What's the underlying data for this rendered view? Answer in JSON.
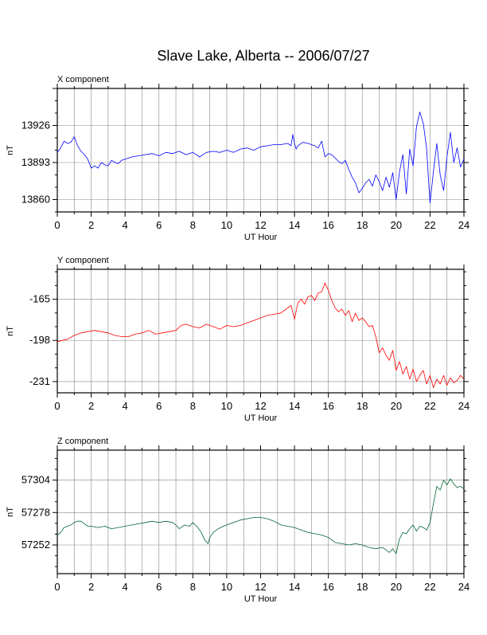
{
  "title": "Slave Lake, Alberta -- 2006/07/27",
  "colors": {
    "x": "#0000ff",
    "y": "#ff0000",
    "z": "#006633",
    "grid": "#888888"
  },
  "chart_data": [
    {
      "type": "line",
      "panel_label": "X component",
      "xlabel": "UT Hour",
      "ylabel": "nT",
      "xlim": [
        0,
        24
      ],
      "ylim": [
        13849,
        13959
      ],
      "x_ticks": [
        0,
        2,
        4,
        6,
        8,
        10,
        12,
        14,
        16,
        18,
        20,
        22,
        24
      ],
      "y_ticks": [
        13926,
        13893,
        13860
      ],
      "grid": true,
      "color_key": "x",
      "series": [
        {
          "x": [
            0,
            0.2,
            0.4,
            0.6,
            0.8,
            1.0,
            1.2,
            1.4,
            1.6,
            1.8,
            2.0,
            2.2,
            2.4,
            2.6,
            2.8,
            3.0,
            3.2,
            3.4,
            3.6,
            3.8,
            4.0,
            4.4,
            4.8,
            5.2,
            5.6,
            6.0,
            6.4,
            6.8,
            7.2,
            7.6,
            8.0,
            8.4,
            8.8,
            9.2,
            9.6,
            10.0,
            10.4,
            10.8,
            11.2,
            11.6,
            12.0,
            12.4,
            12.8,
            13.2,
            13.6,
            13.8,
            13.9,
            14.0,
            14.1,
            14.2,
            14.5,
            14.8,
            15.0,
            15.2,
            15.4,
            15.6,
            15.8,
            16.0,
            16.2,
            16.4,
            16.6,
            16.8,
            17.0,
            17.2,
            17.4,
            17.6,
            17.8,
            18.0,
            18.2,
            18.4,
            18.6,
            18.8,
            19.0,
            19.2,
            19.4,
            19.6,
            19.8,
            20.0,
            20.2,
            20.4,
            20.6,
            20.8,
            21.0,
            21.2,
            21.4,
            21.6,
            21.8,
            21.9,
            22.0,
            22.2,
            22.4,
            22.6,
            22.8,
            23.0,
            23.2,
            23.4,
            23.6,
            23.8,
            24.0
          ],
          "y": [
            13902,
            13906,
            13912,
            13910,
            13911,
            13916,
            13908,
            13903,
            13900,
            13896,
            13888,
            13890,
            13888,
            13893,
            13891,
            13890,
            13895,
            13893,
            13892,
            13895,
            13896,
            13898,
            13899,
            13900,
            13901,
            13899,
            13902,
            13901,
            13903,
            13900,
            13902,
            13898,
            13902,
            13903,
            13902,
            13904,
            13902,
            13905,
            13906,
            13904,
            13907,
            13908,
            13909,
            13909,
            13910,
            13908,
            13918,
            13910,
            13905,
            13908,
            13911,
            13910,
            13909,
            13908,
            13906,
            13912,
            13898,
            13901,
            13900,
            13897,
            13894,
            13892,
            13895,
            13887,
            13880,
            13875,
            13866,
            13870,
            13875,
            13878,
            13872,
            13882,
            13876,
            13868,
            13880,
            13871,
            13884,
            13860,
            13885,
            13900,
            13865,
            13905,
            13890,
            13925,
            13938,
            13928,
            13905,
            13880,
            13857,
            13885,
            13910,
            13882,
            13868,
            13898,
            13920,
            13893,
            13906,
            13889,
            13896
          ]
        }
      ]
    },
    {
      "type": "line",
      "panel_label": "Y component",
      "xlabel": "UT Hour",
      "ylabel": "nT",
      "xlim": [
        0,
        24
      ],
      "ylim": [
        -240,
        -141
      ],
      "x_ticks": [
        0,
        2,
        4,
        6,
        8,
        10,
        12,
        14,
        16,
        18,
        20,
        22,
        24
      ],
      "y_ticks": [
        -165,
        -198,
        -231
      ],
      "grid": true,
      "color_key": "y",
      "series": [
        {
          "x": [
            0,
            0.3,
            0.6,
            1.0,
            1.4,
            1.8,
            2.2,
            2.6,
            3.0,
            3.4,
            3.8,
            4.2,
            4.6,
            5.0,
            5.4,
            5.8,
            6.2,
            6.6,
            7.0,
            7.3,
            7.6,
            8.0,
            8.4,
            8.8,
            9.2,
            9.6,
            10.0,
            10.4,
            10.8,
            11.2,
            11.6,
            12.0,
            12.4,
            12.8,
            13.2,
            13.6,
            13.8,
            14.0,
            14.2,
            14.4,
            14.6,
            14.8,
            15.0,
            15.2,
            15.4,
            15.6,
            15.8,
            16.0,
            16.2,
            16.4,
            16.6,
            16.8,
            17.0,
            17.2,
            17.4,
            17.6,
            17.8,
            18.0,
            18.2,
            18.4,
            18.6,
            18.8,
            19.0,
            19.2,
            19.4,
            19.6,
            19.8,
            20.0,
            20.2,
            20.4,
            20.6,
            20.8,
            21.0,
            21.2,
            21.4,
            21.6,
            21.8,
            22.0,
            22.2,
            22.4,
            22.6,
            22.8,
            23.0,
            23.2,
            23.4,
            23.6,
            23.8,
            24.0
          ],
          "y": [
            -199,
            -198,
            -197,
            -194,
            -192,
            -191,
            -190,
            -191,
            -192,
            -194,
            -195,
            -195,
            -193,
            -192,
            -190,
            -193,
            -192,
            -191,
            -190,
            -186,
            -185,
            -187,
            -188,
            -185,
            -187,
            -189,
            -186,
            -187,
            -186,
            -184,
            -182,
            -180,
            -178,
            -177,
            -176,
            -172,
            -170,
            -181,
            -168,
            -165,
            -169,
            -163,
            -162,
            -166,
            -160,
            -159,
            -152,
            -158,
            -166,
            -172,
            -175,
            -173,
            -178,
            -174,
            -183,
            -176,
            -182,
            -180,
            -183,
            -187,
            -186,
            -195,
            -208,
            -204,
            -210,
            -214,
            -206,
            -222,
            -215,
            -225,
            -219,
            -229,
            -221,
            -231,
            -226,
            -222,
            -233,
            -226,
            -236,
            -229,
            -233,
            -226,
            -234,
            -228,
            -232,
            -230,
            -226,
            -229
          ]
        }
      ]
    },
    {
      "type": "line",
      "panel_label": "Z component",
      "xlabel": "UT Hour",
      "ylabel": "nT",
      "xlim": [
        0,
        24
      ],
      "ylim": [
        57229,
        57328
      ],
      "x_ticks": [
        0,
        2,
        4,
        6,
        8,
        10,
        12,
        14,
        16,
        18,
        20,
        22,
        24
      ],
      "y_ticks": [
        57304,
        57278,
        57252
      ],
      "grid": true,
      "color_key": "z",
      "series": [
        {
          "x": [
            0,
            0.2,
            0.4,
            0.6,
            0.8,
            1.0,
            1.2,
            1.4,
            1.6,
            1.8,
            2.0,
            2.4,
            2.8,
            3.2,
            3.6,
            4.0,
            4.4,
            4.8,
            5.2,
            5.6,
            6.0,
            6.4,
            6.8,
            7.0,
            7.2,
            7.5,
            7.8,
            8.0,
            8.3,
            8.5,
            8.7,
            8.9,
            9.0,
            9.2,
            9.5,
            9.8,
            10.0,
            10.4,
            10.8,
            11.2,
            11.6,
            12.0,
            12.4,
            12.8,
            13.2,
            13.6,
            14.0,
            14.4,
            14.8,
            15.2,
            15.6,
            16.0,
            16.4,
            16.8,
            17.2,
            17.6,
            18.0,
            18.4,
            18.8,
            19.2,
            19.6,
            19.8,
            20.0,
            20.2,
            20.4,
            20.6,
            20.8,
            21.0,
            21.2,
            21.4,
            21.6,
            21.8,
            22.0,
            22.2,
            22.4,
            22.6,
            22.8,
            23.0,
            23.2,
            23.4,
            23.6,
            23.8,
            24.0
          ],
          "y": [
            57260,
            57262,
            57266,
            57267,
            57268,
            57270,
            57271,
            57271,
            57269,
            57267,
            57267,
            57266,
            57267,
            57265,
            57266,
            57267,
            57268,
            57269,
            57270,
            57271,
            57270,
            57271,
            57270,
            57268,
            57265,
            57268,
            57267,
            57270,
            57266,
            57262,
            57256,
            57253,
            57258,
            57262,
            57265,
            57267,
            57268,
            57270,
            57272,
            57273,
            57274,
            57274,
            57273,
            57271,
            57268,
            57267,
            57266,
            57264,
            57262,
            57261,
            57260,
            57258,
            57254,
            57253,
            57252,
            57253,
            57252,
            57250,
            57249,
            57250,
            57246,
            57249,
            57245,
            57257,
            57262,
            57261,
            57265,
            57268,
            57263,
            57267,
            57266,
            57264,
            57270,
            57285,
            57299,
            57296,
            57304,
            57300,
            57305,
            57301,
            57298,
            57299,
            57297
          ]
        }
      ]
    }
  ]
}
